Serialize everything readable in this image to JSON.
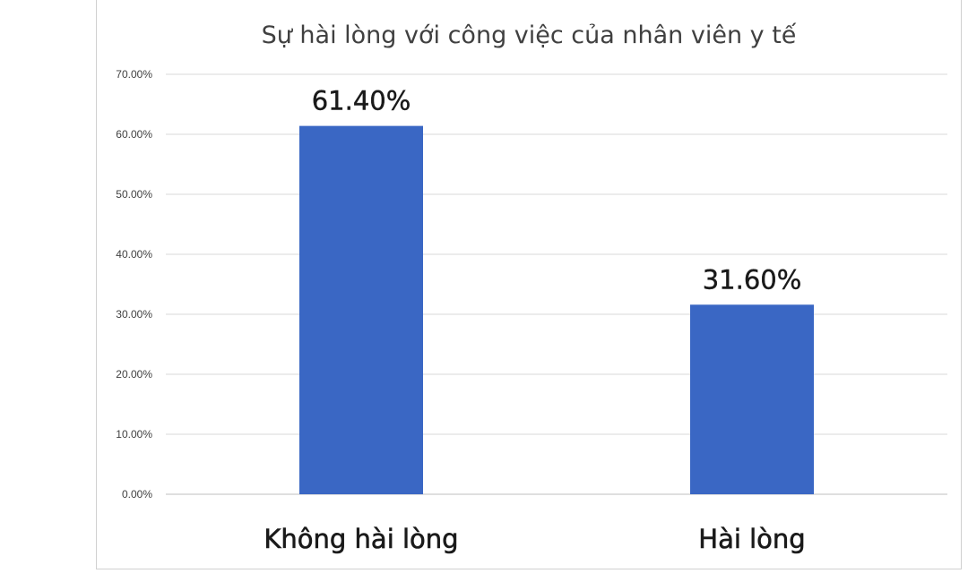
{
  "chart_data": {
    "type": "bar",
    "title": "Sự hài lòng với công việc  của nhân viên y tế",
    "xlabel": "",
    "ylabel": "",
    "categories": [
      "Không hài lòng",
      "Hài lòng"
    ],
    "values": [
      61.4,
      31.6
    ],
    "data_labels": [
      "61.40%",
      "31.60%"
    ],
    "ylim": [
      0,
      70
    ],
    "yticks": [
      0,
      10,
      20,
      30,
      40,
      50,
      60,
      70
    ],
    "ytick_labels": [
      "0.00%",
      "10.00%",
      "20.00%",
      "30.00%",
      "40.00%",
      "50.00%",
      "60.00%",
      "70.00%"
    ],
    "grid": true,
    "legend": "none",
    "bar_color": "#3a67c4"
  }
}
